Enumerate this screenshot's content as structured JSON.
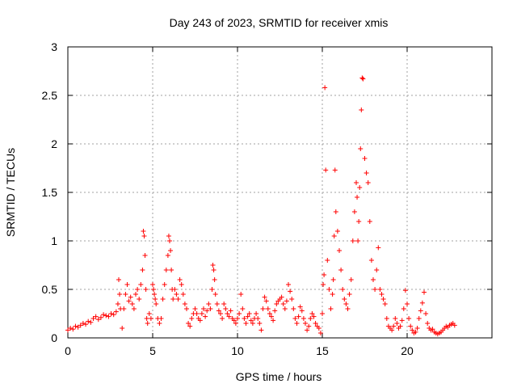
{
  "chart_data": {
    "type": "scatter",
    "title": "Day 243 of 2023, SRMTID for receiver xmis",
    "xlabel": "GPS time / hours",
    "ylabel": "SRMTID / TECUs",
    "xlim": [
      0,
      25
    ],
    "ylim": [
      0,
      3
    ],
    "xticks": [
      0,
      5,
      10,
      15,
      20
    ],
    "yticks": [
      0,
      0.5,
      1,
      1.5,
      2,
      2.5,
      3
    ],
    "ytick_labels": [
      "0",
      "0.5",
      "1",
      "1.5",
      "2",
      "2.5",
      "3"
    ],
    "grid": true,
    "marker": "+",
    "color": "#ff0000",
    "series": [
      {
        "name": "SRMTID",
        "x": [
          0.0,
          0.15,
          0.3,
          0.45,
          0.6,
          0.75,
          0.9,
          1.05,
          1.2,
          1.35,
          1.5,
          1.65,
          1.8,
          1.95,
          2.1,
          2.25,
          2.4,
          2.55,
          2.7,
          2.85,
          2.95,
          3.0,
          3.05,
          3.1,
          3.2,
          3.3,
          3.4,
          3.5,
          3.6,
          3.7,
          3.8,
          3.9,
          4.0,
          4.1,
          4.2,
          4.3,
          4.4,
          4.45,
          4.5,
          4.55,
          4.6,
          4.65,
          4.7,
          4.8,
          4.9,
          5.0,
          5.05,
          5.1,
          5.15,
          5.2,
          5.3,
          5.4,
          5.5,
          5.6,
          5.7,
          5.8,
          5.9,
          5.95,
          6.0,
          6.05,
          6.1,
          6.15,
          6.2,
          6.3,
          6.4,
          6.5,
          6.6,
          6.7,
          6.8,
          6.9,
          7.0,
          7.1,
          7.2,
          7.3,
          7.4,
          7.5,
          7.6,
          7.7,
          7.8,
          7.9,
          8.0,
          8.1,
          8.2,
          8.3,
          8.4,
          8.5,
          8.55,
          8.6,
          8.65,
          8.7,
          8.8,
          8.9,
          9.0,
          9.1,
          9.2,
          9.3,
          9.4,
          9.5,
          9.6,
          9.7,
          9.8,
          9.9,
          10.0,
          10.1,
          10.2,
          10.3,
          10.4,
          10.5,
          10.6,
          10.7,
          10.8,
          10.9,
          11.0,
          11.1,
          11.2,
          11.3,
          11.4,
          11.5,
          11.6,
          11.7,
          11.8,
          11.9,
          12.0,
          12.1,
          12.2,
          12.3,
          12.4,
          12.5,
          12.6,
          12.7,
          12.8,
          12.9,
          13.0,
          13.1,
          13.2,
          13.3,
          13.4,
          13.5,
          13.6,
          13.7,
          13.8,
          13.9,
          14.0,
          14.1,
          14.2,
          14.3,
          14.4,
          14.5,
          14.6,
          14.7,
          14.8,
          14.9,
          15.0,
          15.05,
          15.1,
          15.15,
          15.2,
          15.3,
          15.4,
          15.5,
          15.6,
          15.65,
          15.7,
          15.75,
          15.8,
          15.9,
          16.0,
          16.1,
          16.2,
          16.3,
          16.4,
          16.5,
          16.6,
          16.7,
          16.8,
          16.9,
          17.0,
          17.05,
          17.1,
          17.15,
          17.2,
          17.25,
          17.3,
          17.35,
          17.4,
          17.5,
          17.6,
          17.7,
          17.8,
          17.9,
          18.0,
          18.1,
          18.2,
          18.3,
          18.4,
          18.5,
          18.6,
          18.7,
          18.8,
          18.9,
          19.0,
          19.1,
          19.2,
          19.3,
          19.4,
          19.5,
          19.6,
          19.7,
          19.8,
          19.9,
          20.0,
          20.1,
          20.2,
          20.3,
          20.4,
          20.5,
          20.6,
          20.7,
          20.8,
          20.9,
          21.0,
          21.1,
          21.2,
          21.3,
          21.4,
          21.5,
          21.6,
          21.7,
          21.8,
          21.9,
          22.0,
          22.1,
          22.2,
          22.3,
          22.4,
          22.5,
          22.6,
          22.7,
          22.8
        ],
        "y": [
          0.08,
          0.1,
          0.09,
          0.12,
          0.11,
          0.13,
          0.15,
          0.14,
          0.17,
          0.16,
          0.2,
          0.22,
          0.19,
          0.21,
          0.24,
          0.23,
          0.22,
          0.25,
          0.24,
          0.27,
          0.35,
          0.6,
          0.45,
          0.3,
          0.1,
          0.3,
          0.45,
          0.55,
          0.38,
          0.42,
          0.35,
          0.3,
          0.45,
          0.5,
          0.4,
          0.55,
          0.7,
          1.1,
          1.05,
          0.85,
          0.5,
          0.2,
          0.15,
          0.25,
          0.2,
          0.55,
          0.5,
          0.45,
          0.4,
          0.35,
          0.2,
          0.15,
          0.2,
          0.4,
          0.55,
          0.7,
          0.85,
          1.05,
          1.0,
          0.9,
          0.7,
          0.5,
          0.4,
          0.5,
          0.45,
          0.4,
          0.6,
          0.55,
          0.45,
          0.35,
          0.3,
          0.15,
          0.12,
          0.2,
          0.25,
          0.3,
          0.25,
          0.2,
          0.18,
          0.25,
          0.3,
          0.22,
          0.28,
          0.35,
          0.3,
          0.5,
          0.75,
          0.7,
          0.6,
          0.45,
          0.35,
          0.28,
          0.25,
          0.2,
          0.35,
          0.3,
          0.25,
          0.22,
          0.28,
          0.2,
          0.18,
          0.15,
          0.2,
          0.25,
          0.45,
          0.3,
          0.2,
          0.15,
          0.22,
          0.25,
          0.18,
          0.15,
          0.2,
          0.25,
          0.2,
          0.15,
          0.08,
          0.3,
          0.42,
          0.38,
          0.3,
          0.25,
          0.22,
          0.18,
          0.28,
          0.35,
          0.38,
          0.4,
          0.42,
          0.35,
          0.3,
          0.38,
          0.55,
          0.48,
          0.4,
          0.3,
          0.2,
          0.15,
          0.22,
          0.32,
          0.28,
          0.2,
          0.15,
          0.08,
          0.12,
          0.2,
          0.25,
          0.22,
          0.15,
          0.12,
          0.1,
          0.05,
          0.25,
          0.55,
          0.65,
          2.58,
          1.73,
          0.8,
          0.5,
          0.3,
          0.45,
          0.6,
          1.05,
          1.73,
          1.3,
          1.1,
          0.9,
          0.7,
          0.5,
          0.4,
          0.35,
          0.3,
          0.45,
          0.6,
          1.0,
          1.3,
          1.6,
          1.45,
          1.0,
          1.2,
          1.55,
          1.95,
          2.35,
          2.68,
          2.67,
          1.85,
          1.7,
          1.6,
          1.2,
          0.8,
          0.6,
          0.5,
          0.7,
          0.93,
          0.5,
          0.45,
          0.4,
          0.35,
          0.2,
          0.12,
          0.1,
          0.08,
          0.12,
          0.2,
          0.15,
          0.1,
          0.12,
          0.18,
          0.3,
          0.49,
          0.35,
          0.2,
          0.12,
          0.08,
          0.05,
          0.06,
          0.1,
          0.2,
          0.28,
          0.36,
          0.47,
          0.25,
          0.15,
          0.1,
          0.08,
          0.09,
          0.06,
          0.05,
          0.04,
          0.05,
          0.06,
          0.08,
          0.1,
          0.12,
          0.11,
          0.13,
          0.14,
          0.15,
          0.13
        ]
      }
    ]
  }
}
